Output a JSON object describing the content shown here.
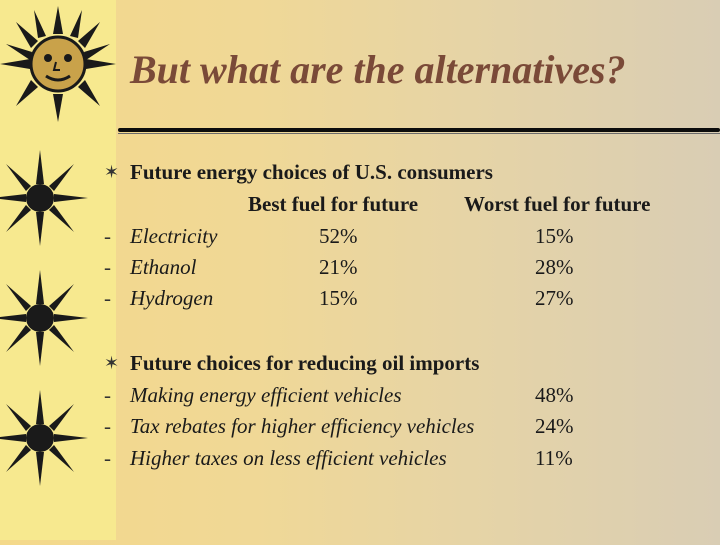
{
  "slide": {
    "title": "But what are the alternatives?"
  },
  "section1": {
    "heading": "Future energy choices of U.S. consumers",
    "col_best": "Best fuel for future",
    "col_worst": "Worst fuel for future",
    "rows": [
      {
        "label": "Electricity",
        "best": "52%",
        "worst": "15%"
      },
      {
        "label": "Ethanol",
        "best": "21%",
        "worst": "28%"
      },
      {
        "label": "Hydrogen",
        "best": "15%",
        "worst": "27%"
      }
    ]
  },
  "section2": {
    "heading": "Future choices for reducing oil imports",
    "rows": [
      {
        "label": "Making energy efficient vehicles",
        "value": "48%"
      },
      {
        "label": "Tax rebates for higher efficiency vehicles",
        "value": "24%"
      },
      {
        "label": "Higher taxes on less efficient vehicles",
        "value": "11%"
      }
    ]
  },
  "glyphs": {
    "star_bullet": "✶",
    "dash": "-"
  },
  "colors": {
    "title": "#7a4a38",
    "sun": "#1a1a1a",
    "left_strip": "#f7e98f"
  }
}
